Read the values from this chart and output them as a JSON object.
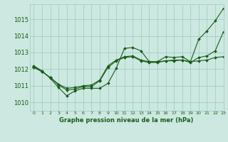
{
  "background_color": "#cce8e0",
  "grid_color": "#99ccbb",
  "line_color": "#1a5c1a",
  "title": "Graphe pression niveau de la mer (hPa)",
  "xlim": [
    -0.5,
    23
  ],
  "ylim": [
    1009.5,
    1015.9
  ],
  "yticks": [
    1010,
    1011,
    1012,
    1013,
    1014,
    1015
  ],
  "xticks": [
    0,
    1,
    2,
    3,
    4,
    5,
    6,
    7,
    8,
    9,
    10,
    11,
    12,
    13,
    14,
    15,
    16,
    17,
    18,
    19,
    20,
    21,
    22,
    23
  ],
  "line1_x": [
    0,
    1,
    2,
    3,
    4,
    5,
    6,
    7,
    8,
    9,
    10,
    11,
    12,
    13,
    14,
    15,
    16,
    17,
    18,
    19,
    20,
    21,
    22,
    23
  ],
  "line1_y": [
    1012.2,
    1011.9,
    1011.45,
    1010.9,
    1010.4,
    1010.7,
    1010.85,
    1010.85,
    1010.85,
    1011.15,
    1012.05,
    1013.25,
    1013.3,
    1013.1,
    1012.45,
    1012.45,
    1012.75,
    1012.7,
    1012.75,
    1012.45,
    1013.8,
    1014.3,
    1014.9,
    1015.65
  ],
  "line2_x": [
    0,
    1,
    2,
    3,
    4,
    5,
    6,
    7,
    8,
    9,
    10,
    11,
    12,
    13,
    14,
    15,
    16,
    17,
    18,
    19,
    20,
    21,
    22,
    23
  ],
  "line2_y": [
    1012.1,
    1011.85,
    1011.5,
    1011.05,
    1010.75,
    1010.8,
    1010.95,
    1010.95,
    1011.3,
    1012.1,
    1012.5,
    1012.7,
    1012.75,
    1012.5,
    1012.4,
    1012.4,
    1012.5,
    1012.5,
    1012.55,
    1012.4,
    1012.7,
    1012.8,
    1013.1,
    1014.25
  ],
  "line3_x": [
    0,
    1,
    2,
    3,
    4,
    5,
    6,
    7,
    8,
    9,
    10,
    11,
    12,
    13,
    14,
    15,
    16,
    17,
    18,
    19,
    20,
    21,
    22,
    23
  ],
  "line3_y": [
    1012.15,
    1011.85,
    1011.5,
    1011.1,
    1010.85,
    1010.9,
    1011.0,
    1011.05,
    1011.35,
    1012.2,
    1012.55,
    1012.75,
    1012.8,
    1012.55,
    1012.45,
    1012.45,
    1012.5,
    1012.55,
    1012.55,
    1012.45,
    1012.5,
    1012.55,
    1012.7,
    1012.75
  ],
  "ytick_fontsize": 6,
  "xtick_fontsize": 4.5,
  "xlabel_fontsize": 6
}
